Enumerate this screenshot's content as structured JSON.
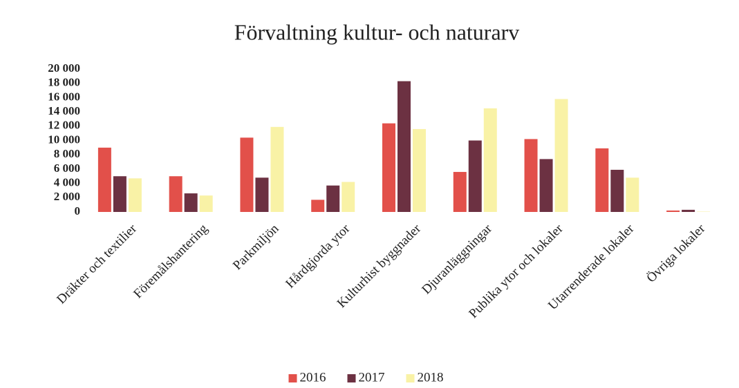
{
  "chart_data": {
    "type": "bar",
    "title": "Förvaltning kultur- och naturarv",
    "categories": [
      "Dräkter och textilier",
      "Föremålshantering",
      "Parkmiljön",
      "Hårdgjorda ytor",
      "Kulturhist byggnader",
      "Djuranläggningar",
      "Publika ytor och lokaler",
      "Utarrenderade lokaler",
      "Övriga lokaler"
    ],
    "series": [
      {
        "name": "2016",
        "color": "#e2504a",
        "values": [
          9000,
          5000,
          10400,
          1700,
          12400,
          5600,
          10200,
          8900,
          200
        ]
      },
      {
        "name": "2017",
        "color": "#6c3142",
        "values": [
          5000,
          2600,
          4800,
          3700,
          18300,
          10000,
          7400,
          5900,
          300
        ]
      },
      {
        "name": "2018",
        "color": "#f9f2a6",
        "values": [
          4700,
          2300,
          11900,
          4200,
          11600,
          14500,
          15800,
          4800,
          50
        ]
      }
    ],
    "ylim": [
      0,
      20000
    ],
    "yticks": [
      0,
      {
        "value": 2000,
        "label": "2 000"
      },
      {
        "value": 4000,
        "label": "4 000"
      },
      {
        "value": 6000,
        "label": "6 000"
      },
      {
        "value": 8000,
        "label": "8 000"
      },
      {
        "value": 10000,
        "label": "10 000"
      },
      {
        "value": 12000,
        "label": "12 000"
      },
      {
        "value": 14000,
        "label": "14 000"
      },
      {
        "value": 16000,
        "label": "16 000"
      },
      {
        "value": 18000,
        "label": "18 000"
      },
      {
        "value": 20000,
        "label": "20 000"
      }
    ],
    "legend": "bottom"
  }
}
